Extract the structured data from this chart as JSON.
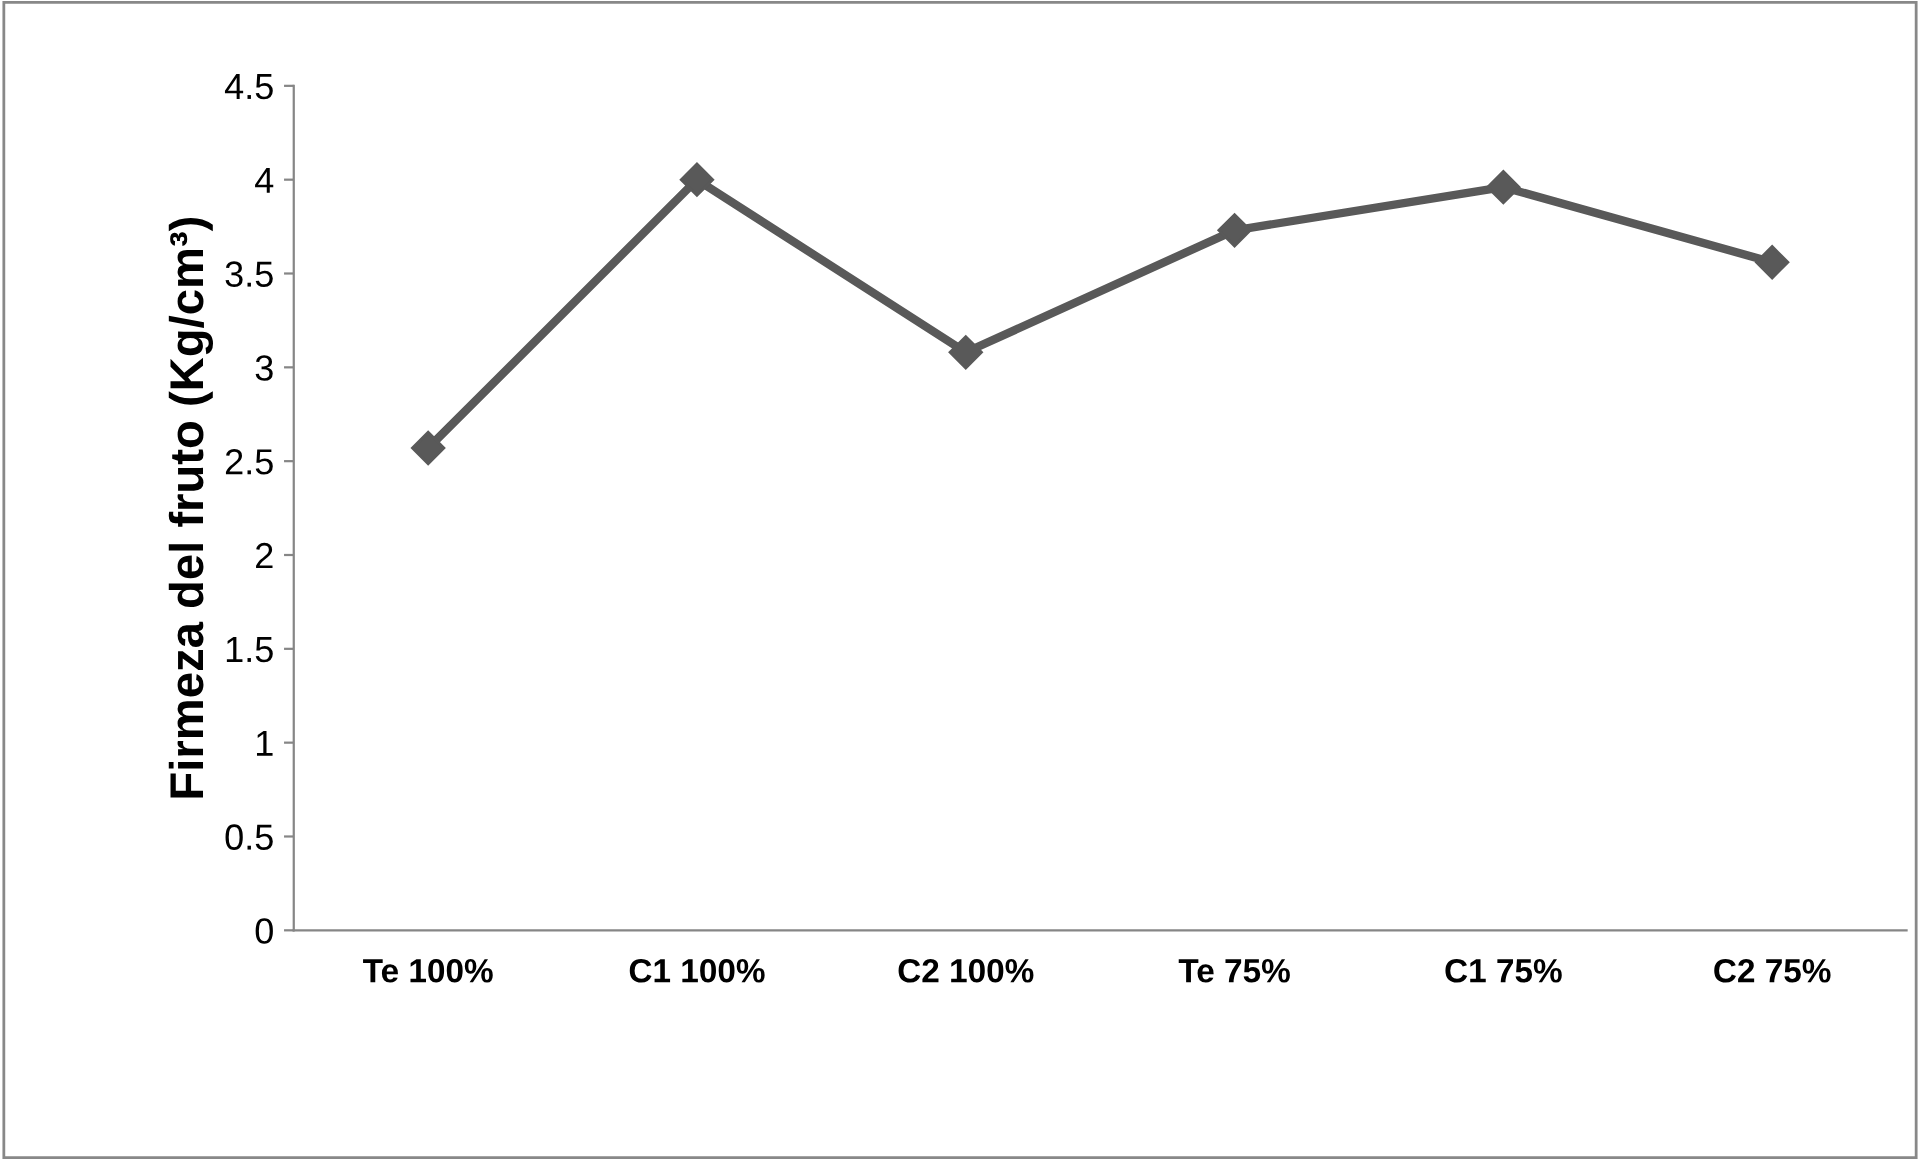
{
  "chart_data": {
    "type": "line",
    "ylabel": "Firmeza del fruto (Kg/cm³)",
    "categories": [
      "Te 100%",
      "C1 100%",
      "C2 100%",
      "Te 75%",
      "C1 75%",
      "C2 75%"
    ],
    "series": [
      {
        "color": "#595959",
        "values": [
          2.57,
          4.0,
          3.08,
          3.73,
          3.96,
          3.56
        ]
      }
    ],
    "ylim": [
      0,
      4.5
    ],
    "yticks": [
      0,
      0.5,
      1,
      1.5,
      2,
      2.5,
      3,
      3.5,
      4,
      4.5
    ],
    "grid": false,
    "legend": false,
    "marker": "diamond",
    "line_style": "solid"
  }
}
